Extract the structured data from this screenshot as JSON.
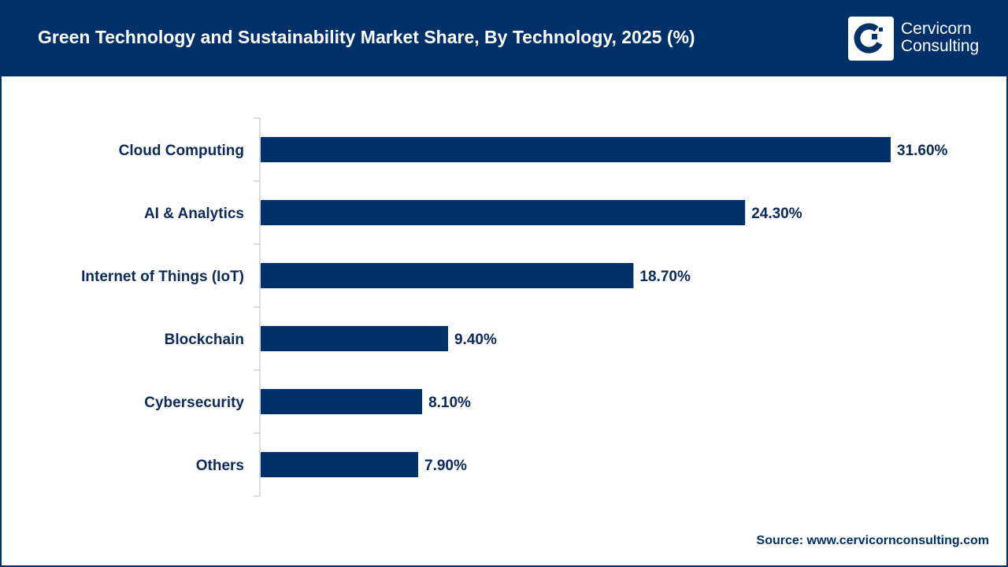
{
  "header": {
    "title": "Green Technology and Sustainability Market Share, By Technology, 2025 (%)",
    "logo_line1": "Cervicorn",
    "logo_line2": "Consulting"
  },
  "source": "Source: www.cervicornconsulting.com",
  "colors": {
    "bar": "#003068",
    "header": "#003068",
    "label": "#0b2a5b"
  },
  "chart_data": {
    "type": "bar",
    "orientation": "horizontal",
    "title": "Green Technology and Sustainability Market Share, By Technology, 2025 (%)",
    "categories": [
      "Cloud Computing",
      "AI & Analytics",
      "Internet of Things (IoT)",
      "Blockchain",
      "Cybersecurity",
      "Others"
    ],
    "values": [
      31.6,
      24.3,
      18.7,
      9.4,
      8.1,
      7.9
    ],
    "data_labels": [
      "31.60%",
      "24.30%",
      "18.70%",
      "9.40%",
      "8.10%",
      "7.90%"
    ],
    "xlim": [
      0,
      31.6
    ],
    "grid": false,
    "legend": "none"
  }
}
